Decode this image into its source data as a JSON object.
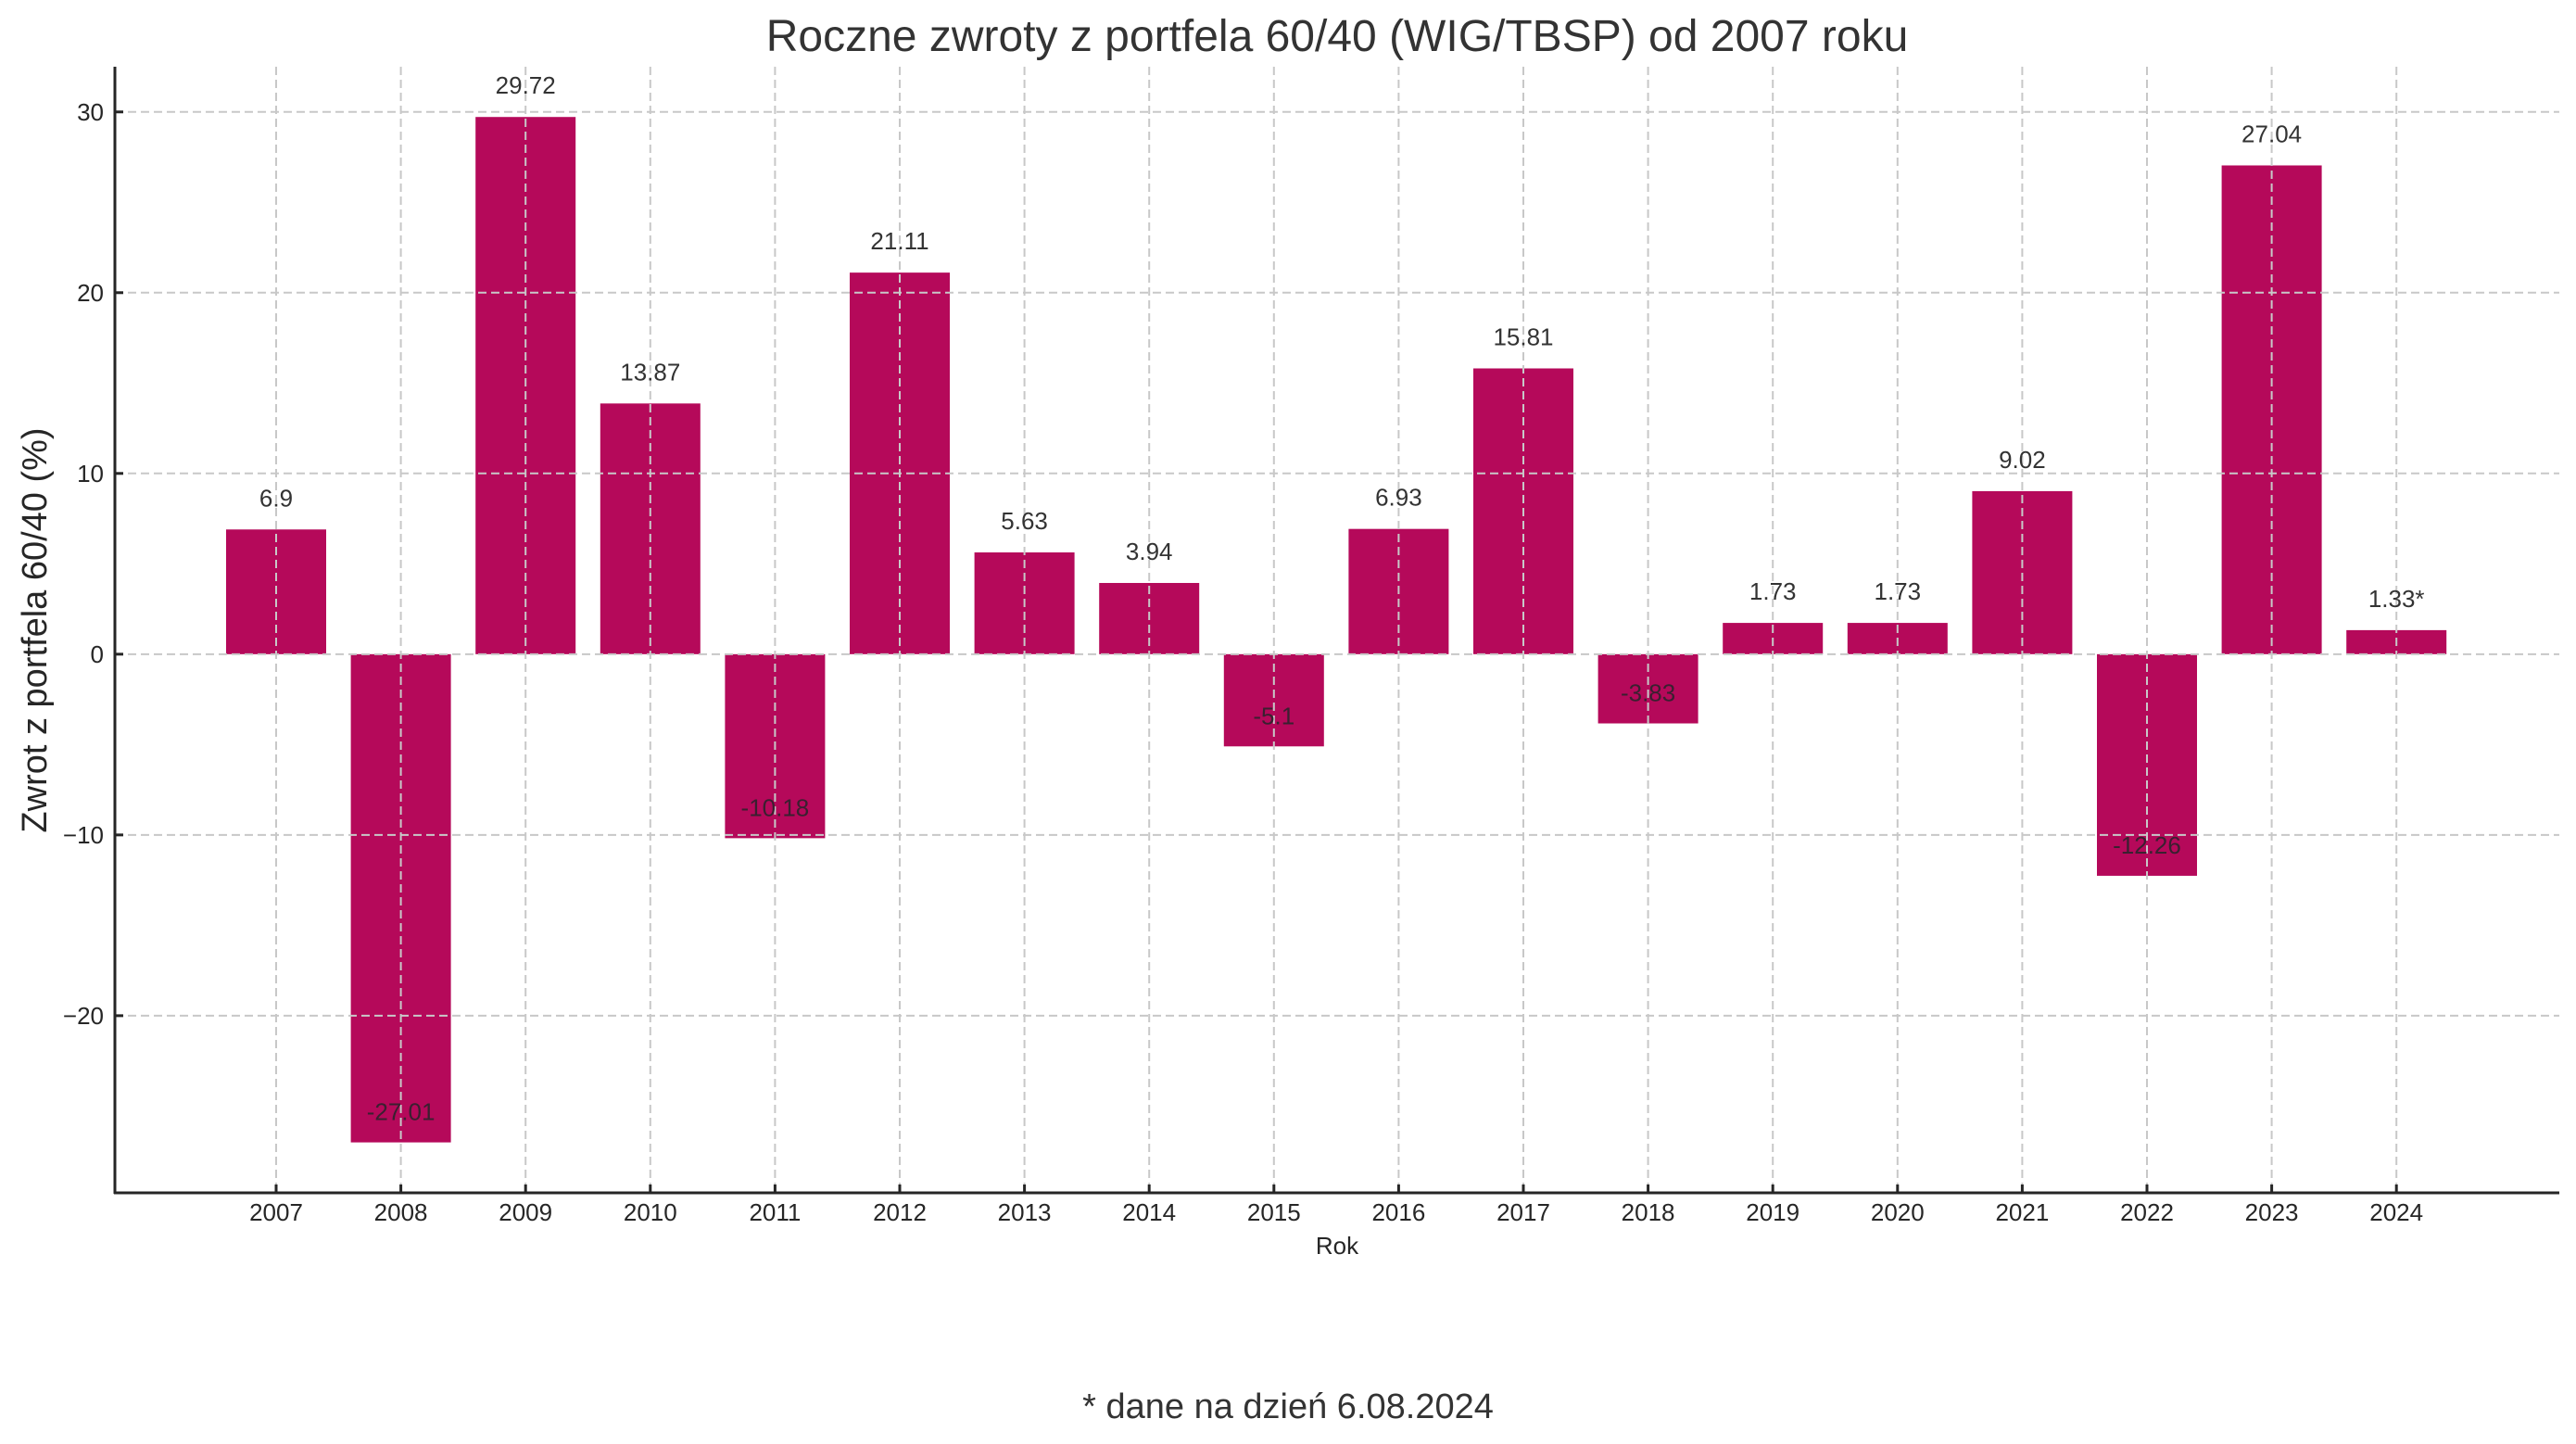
{
  "chart_data": {
    "type": "bar",
    "title": "Roczne zwroty z portfela 60/40 (WIG/TBSP) od 2007 roku",
    "xlabel": "Rok",
    "ylabel": "Zwrot z portfela 60/40 (%)",
    "footnote": "* dane na dzień 6.08.2024",
    "categories": [
      "2007",
      "2008",
      "2009",
      "2010",
      "2011",
      "2012",
      "2013",
      "2014",
      "2015",
      "2016",
      "2017",
      "2018",
      "2019",
      "2020",
      "2021",
      "2022",
      "2023",
      "2024"
    ],
    "values": [
      6.9,
      -27.01,
      29.72,
      13.87,
      -10.18,
      21.11,
      5.63,
      3.94,
      -5.1,
      6.93,
      15.81,
      -3.83,
      1.73,
      1.73,
      9.02,
      -12.26,
      27.04,
      1.33
    ],
    "data_labels": [
      "6.9",
      "-27.01",
      "29.72",
      "13.87",
      "-10.18",
      "21.11",
      "5.63",
      "3.94",
      "-5.1",
      "6.93",
      "15.81",
      "-3.83",
      "1.73",
      "1.73",
      "9.02",
      "-12.26",
      "27.04",
      "1.33*"
    ],
    "yticks": [
      -20,
      -10,
      0,
      10,
      20,
      30
    ],
    "ytick_labels": [
      "−20",
      "−10",
      "0",
      "10",
      "20",
      "30"
    ],
    "ylim": [
      -29.8,
      32.5
    ],
    "grid": true,
    "legend": "none",
    "colors": {
      "bar": "#B5095A",
      "grid": "#c8c8c8",
      "text": "#262626"
    }
  }
}
